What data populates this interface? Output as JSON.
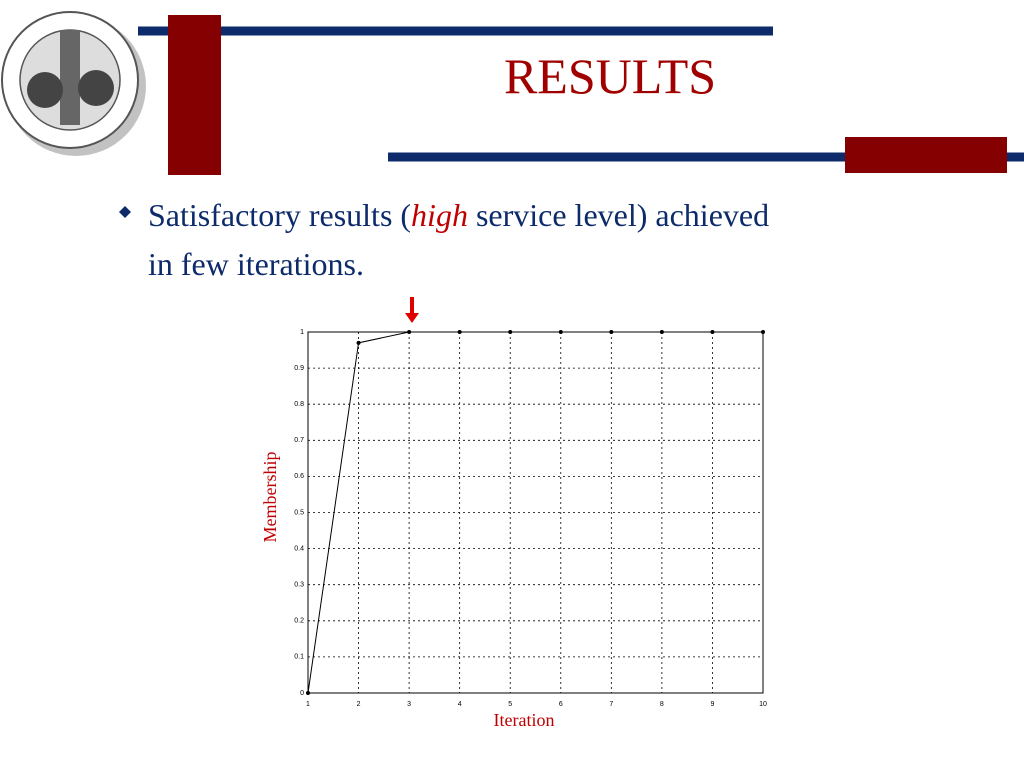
{
  "slide": {
    "title": "RESULTS",
    "bullet": [
      "Satisfactory results (",
      "high",
      " service level) achieved",
      "in few iterations."
    ]
  },
  "chart_data": {
    "type": "line",
    "xlabel": "Iteration",
    "ylabel": "Membership",
    "x": [
      1,
      2,
      3,
      4,
      5,
      6,
      7,
      8,
      9,
      10
    ],
    "series": [
      {
        "color": "#000000",
        "values": [
          0,
          0.97,
          1,
          1,
          1,
          1,
          1,
          1,
          1,
          1
        ]
      }
    ],
    "xlim": [
      1,
      10
    ],
    "xticks": [
      1,
      2,
      3,
      4,
      5,
      6,
      7,
      8,
      9,
      10
    ],
    "ylim": [
      0,
      1
    ],
    "yticks": [
      0,
      0.1,
      0.2,
      0.3,
      0.4,
      0.5,
      0.6,
      0.7,
      0.8,
      0.9,
      1
    ],
    "grid": true
  }
}
